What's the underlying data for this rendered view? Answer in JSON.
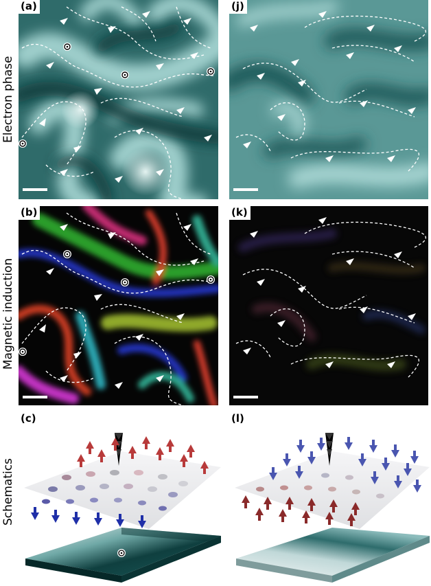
{
  "row_labels": {
    "phase": "Electron phase",
    "induction": "Magnetic induction",
    "schematics": "Schematics"
  },
  "panel_labels": {
    "a": "(a)",
    "j": "(j)",
    "b": "(b)",
    "k": "(k)",
    "c": "(c)",
    "l": "(l)"
  },
  "colors": {
    "phase_bright": "#cfe8e6",
    "phase_dark": "#0e3a3a",
    "induction_bg": "#050505",
    "arrow_up": "#c0392b",
    "arrow_down": "#1f2fb0",
    "plane": "#e8e8ea",
    "floor_dark": "#0d3c3c"
  }
}
